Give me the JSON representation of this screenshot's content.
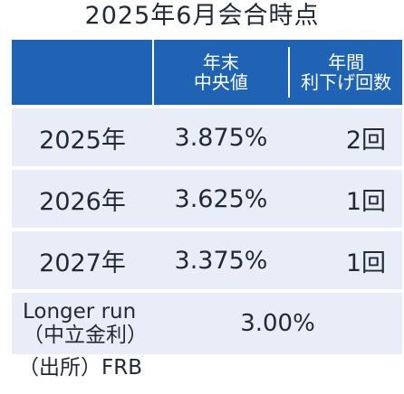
{
  "title": "2025年6月会合時点",
  "header": {
    "col1_line1": "年末",
    "col1_line2": "中央値",
    "col2_line1": "年間",
    "col2_line2": "利下げ回数"
  },
  "rows": [
    {
      "year": "2025年",
      "rate": "3.875%",
      "cuts": "2回"
    },
    {
      "year": "2026年",
      "rate": "3.625%",
      "cuts": "1回"
    },
    {
      "year": "2027年",
      "rate": "3.375%",
      "cuts": "1回"
    }
  ],
  "longer_run": {
    "label_line1": "Longer run",
    "label_line2": "（中立金利）",
    "value": "3.00%"
  },
  "source": "（出所）FRB",
  "colors": {
    "header_bg": "#1f63b4",
    "row_bg": "#e9edf8",
    "text": "#1f2a36"
  }
}
